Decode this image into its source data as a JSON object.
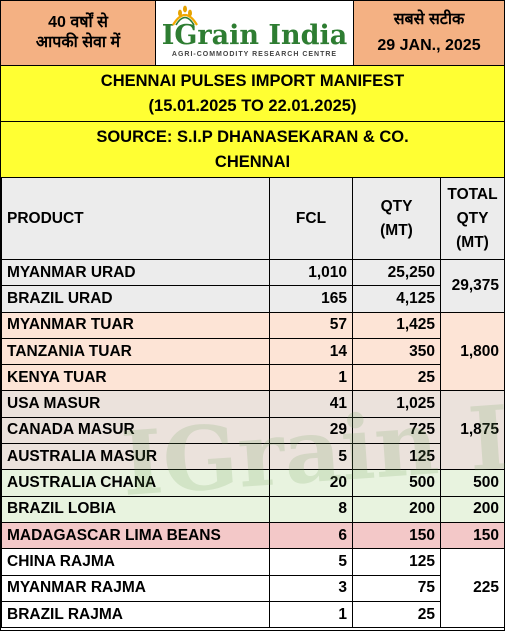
{
  "header": {
    "left_line1": "40 वर्षों से",
    "left_line2": "आपकी सेवा में",
    "logo_text": "IGrain India",
    "logo_tagline": "AGRI-COMMODITY RESEARCH CENTRE",
    "right_line1": "सबसे सटीक",
    "right_line2": "29 JAN., 2025"
  },
  "title": {
    "line1": "CHENNAI PULSES IMPORT MANIFEST",
    "line2": "(15.01.2025 TO 22.01.2025)"
  },
  "source": {
    "line1": "SOURCE: S.I.P DHANASEKARAN & CO.",
    "line2": "CHENNAI"
  },
  "table": {
    "headers": {
      "product": "PRODUCT",
      "fcl": "FCL",
      "qty_l1": "QTY",
      "qty_l2": "(MT)",
      "total_l1": "TOTAL",
      "total_l2": "QTY",
      "total_l3": "(MT)"
    },
    "rows": [
      {
        "product": "MYANMAR URAD",
        "fcl": "1,010",
        "qty": "25,250"
      },
      {
        "product": "BRAZIL URAD",
        "fcl": "165",
        "qty": "4,125"
      },
      {
        "product": "MYANMAR TUAR",
        "fcl": "57",
        "qty": "1,425"
      },
      {
        "product": "TANZANIA TUAR",
        "fcl": "14",
        "qty": "350"
      },
      {
        "product": "KENYA TUAR",
        "fcl": "1",
        "qty": "25"
      },
      {
        "product": "USA MASUR",
        "fcl": "41",
        "qty": "1,025"
      },
      {
        "product": "CANADA MASUR",
        "fcl": "29",
        "qty": "725"
      },
      {
        "product": "AUSTRALIA MASUR",
        "fcl": "5",
        "qty": "125"
      },
      {
        "product": "AUSTRALIA CHANA",
        "fcl": "20",
        "qty": "500"
      },
      {
        "product": "BRAZIL LOBIA",
        "fcl": "8",
        "qty": "200"
      },
      {
        "product": "MADAGASCAR LIMA BEANS",
        "fcl": "6",
        "qty": "150"
      },
      {
        "product": "CHINA RAJMA",
        "fcl": "5",
        "qty": "125"
      },
      {
        "product": "MYANMAR RAJMA",
        "fcl": "3",
        "qty": "75"
      },
      {
        "product": "BRAZIL RAJMA",
        "fcl": "1",
        "qty": "25"
      }
    ],
    "totals": {
      "urad": "29,375",
      "tuar": "1,800",
      "masur": "1,875",
      "chana": "500",
      "lobia": "200",
      "lima": "150",
      "rajma": "225"
    }
  },
  "watermark_text": "IGrain India",
  "colors": {
    "header_orange": "#f4b183",
    "title_yellow": "#ffff33",
    "logo_green": "#2e7d32"
  }
}
